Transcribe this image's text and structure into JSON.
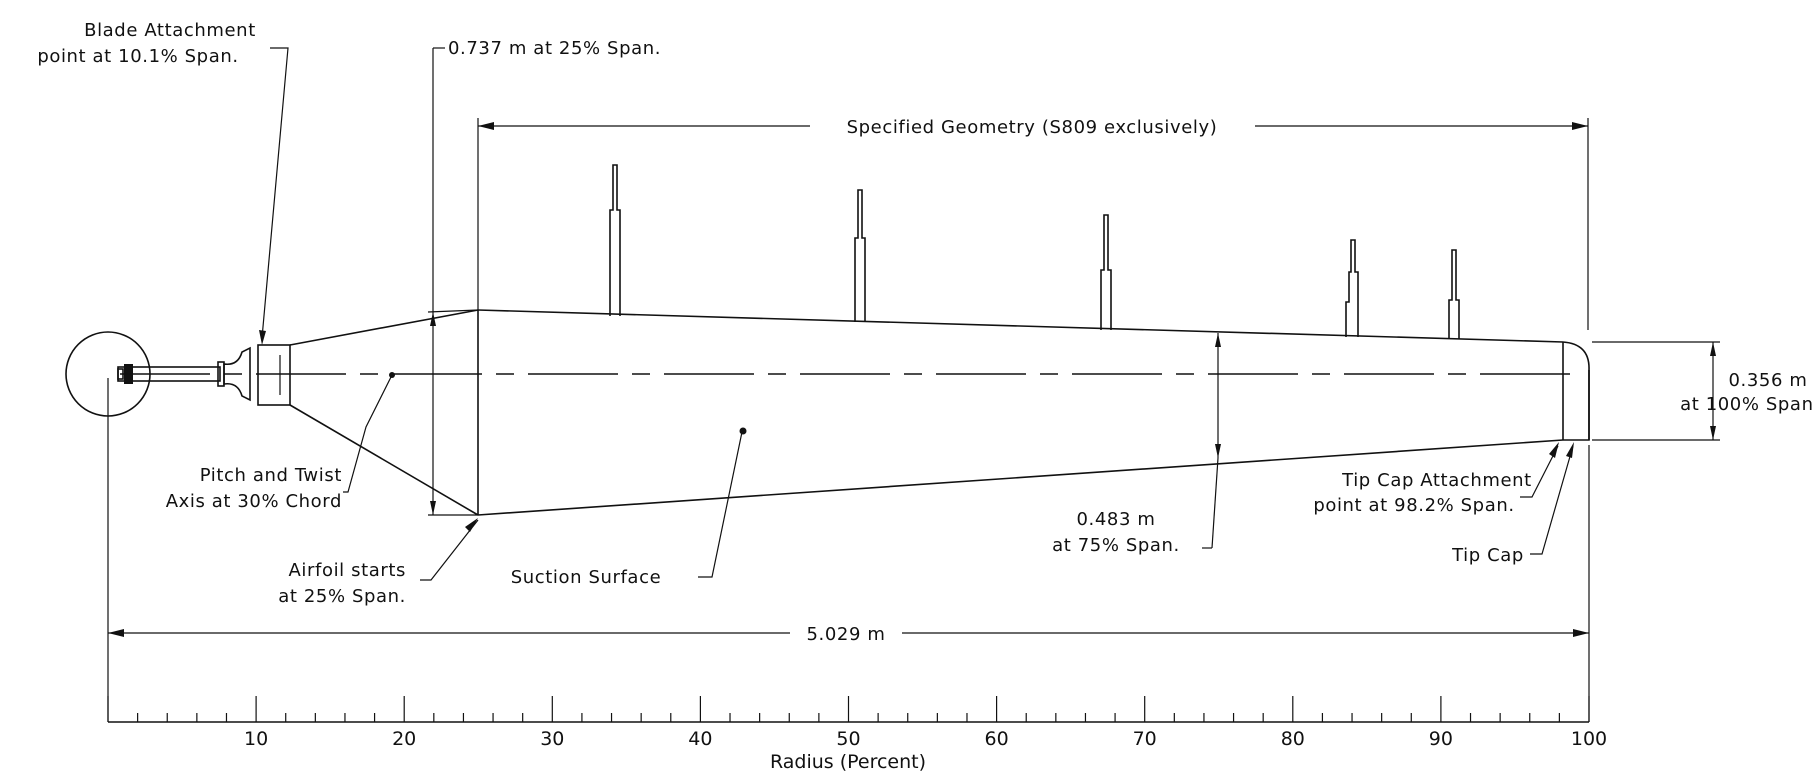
{
  "labels": {
    "blade_attachment_1": "Blade Attachment",
    "blade_attachment_2": "point at 10.1% Span.",
    "chord_25": "0.737 m at 25% Span.",
    "specified_geometry": "Specified Geometry (S809 exclusively)",
    "tip_chord_1": "0.356 m",
    "tip_chord_2": "at 100% Span.",
    "pitch_axis_1": "Pitch and Twist",
    "pitch_axis_2": "Axis at 30% Chord",
    "airfoil_starts_1": "Airfoil starts",
    "airfoil_starts_2": "at 25% Span.",
    "suction_surface": "Suction Surface",
    "chord_75_1": "0.483 m",
    "chord_75_2": "at 75% Span.",
    "tip_cap_attach_1": "Tip Cap Attachment",
    "tip_cap_attach_2": "point at 98.2% Span.",
    "tip_cap": "Tip Cap",
    "overall_length": "5.029 m"
  },
  "axis": {
    "title": "Radius (Percent)",
    "ticks": [
      "10",
      "20",
      "30",
      "40",
      "50",
      "60",
      "70",
      "80",
      "90",
      "100"
    ]
  }
}
